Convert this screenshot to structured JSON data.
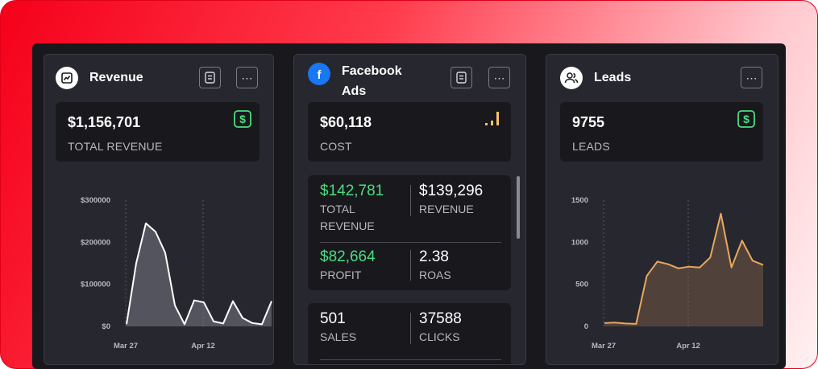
{
  "revenue_card": {
    "title": "Revenue",
    "value": "$1,156,701",
    "label": "TOTAL REVENUE",
    "chart_data": {
      "type": "area",
      "x_tick_labels": [
        "Mar 27",
        "Apr 12"
      ],
      "y_tick_labels": [
        "$300000",
        "$200000",
        "$100000",
        "$0"
      ],
      "ylim": [
        0,
        300000
      ],
      "values": [
        5000,
        150000,
        245000,
        225000,
        175000,
        50000,
        5000,
        62000,
        57000,
        12000,
        7000,
        60000,
        20000,
        8000,
        5000,
        60000
      ],
      "line_color": "#ffffff"
    }
  },
  "facebook_card": {
    "title": "Facebook Ads",
    "cost_value": "$60,118",
    "cost_label": "COST",
    "metrics": [
      {
        "value": "$142,781",
        "label": "TOTAL REVENUE",
        "color": "#4ade80"
      },
      {
        "value": "$139,296",
        "label": "REVENUE",
        "color": "#ffffff"
      },
      {
        "value": "$82,664",
        "label": "PROFIT",
        "color": "#4ade80"
      },
      {
        "value": "2.38",
        "label": "ROAS",
        "color": "#ffffff"
      }
    ],
    "metrics2": [
      {
        "value": "501",
        "label": "SALES"
      },
      {
        "value": "37588",
        "label": "CLICKS"
      }
    ]
  },
  "leads_card": {
    "title": "Leads",
    "value": "9755",
    "label": "LEADS",
    "chart_data": {
      "type": "area",
      "x_tick_labels": [
        "Mar 27",
        "Apr 12"
      ],
      "y_tick_labels": [
        "1500",
        "1000",
        "500",
        "0"
      ],
      "ylim": [
        0,
        1500
      ],
      "values": [
        40,
        45,
        35,
        30,
        600,
        770,
        740,
        690,
        710,
        700,
        820,
        1340,
        700,
        1020,
        780,
        730
      ],
      "line_color": "#e8a85c"
    }
  },
  "icons": {
    "revenue": "chart-icon",
    "facebook": "facebook-icon",
    "leads": "users-icon",
    "notes": "document-icon",
    "more": "more-dots-icon",
    "dollar": "dollar-icon",
    "signal": "signal-bars-icon"
  },
  "colors": {
    "accent_green": "#4ade80",
    "signal": "#f5c26b",
    "facebook_blue": "#1877f2"
  }
}
